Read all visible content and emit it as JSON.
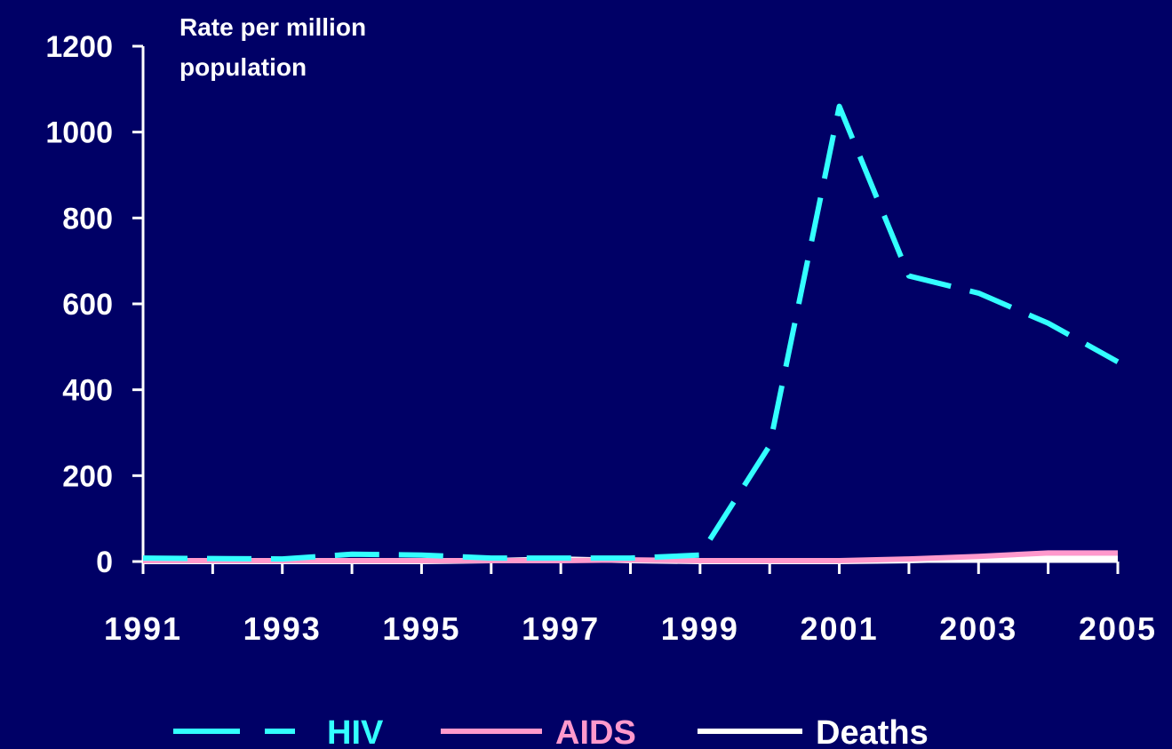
{
  "chart_data": {
    "type": "line",
    "ylabel_lines": [
      "Rate per million",
      "population"
    ],
    "x": [
      1991,
      1992,
      1993,
      1994,
      1995,
      1996,
      1997,
      1998,
      1999,
      2000,
      2001,
      2002,
      2003,
      2004,
      2005
    ],
    "x_tick_labels": [
      "1991",
      "1993",
      "1995",
      "1997",
      "1999",
      "2001",
      "2003",
      "2005"
    ],
    "y_tick_labels": [
      "0",
      "200",
      "400",
      "600",
      "800",
      "1000",
      "1200"
    ],
    "ylim": [
      0,
      1200
    ],
    "xlim": [
      1991,
      2005
    ],
    "grid": false,
    "legend_position": "bottom",
    "series": [
      {
        "name": "HIV",
        "color": "#33ffff",
        "dash": "dashed",
        "values": [
          8,
          7,
          6,
          17,
          15,
          8,
          8,
          8,
          15,
          270,
          1060,
          665,
          625,
          555,
          465
        ]
      },
      {
        "name": "AIDS",
        "color": "#ff99cc",
        "dash": "solid",
        "values": [
          2,
          2,
          2,
          2,
          2,
          2,
          2,
          4,
          2,
          2,
          2,
          6,
          12,
          20,
          20
        ]
      },
      {
        "name": "Deaths",
        "color": "#ffffff",
        "dash": "solid",
        "values": [
          0,
          0,
          0,
          0,
          0,
          2,
          6,
          2,
          0,
          0,
          0,
          2,
          6,
          8,
          8
        ]
      }
    ]
  }
}
